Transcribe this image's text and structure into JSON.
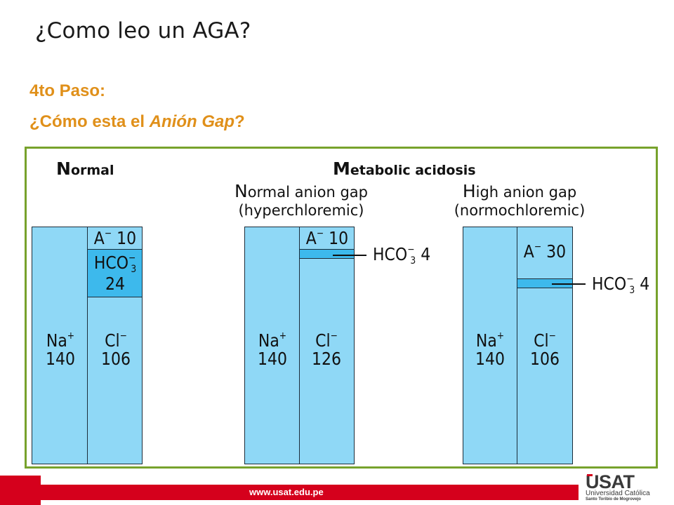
{
  "slide": {
    "title": "¿Como leo un AGA?",
    "step": "4to Paso:",
    "question_prefix": "¿Cómo esta el ",
    "question_em": "Anión Gap",
    "question_suffix": "?"
  },
  "figure": {
    "normal_heading_cap": "N",
    "normal_heading_rest": "ormal",
    "metabolic_heading_cap": "M",
    "metabolic_heading_rest": "etabolic acidosis",
    "panel2_line1_cap": "N",
    "panel2_line1_rest": "ormal anion gap",
    "panel2_line2": "(hyperchloremic)",
    "panel3_line1_cap": "H",
    "panel3_line1_rest": "igh anion gap",
    "panel3_line2": "(normochloremic)",
    "normal": {
      "na_name": "Na",
      "na_charge": "+",
      "na_value": "140",
      "cl_name": "Cl",
      "cl_charge": "−",
      "cl_value": "106",
      "a_name": "A",
      "a_charge": "−",
      "a_value": "10",
      "hco3_name": "HCO",
      "hco3_sub": "3",
      "hco3_charge": "−",
      "hco3_value": "24"
    },
    "hyperchloremic": {
      "na_name": "Na",
      "na_charge": "+",
      "na_value": "140",
      "cl_name": "Cl",
      "cl_charge": "−",
      "cl_value": "126",
      "a_name": "A",
      "a_charge": "−",
      "a_value": "10",
      "hco3_callout_name": "HCO",
      "hco3_callout_sub": "3",
      "hco3_callout_charge": "−",
      "hco3_callout_value": "4"
    },
    "normochloremic": {
      "na_name": "Na",
      "na_charge": "+",
      "na_value": "140",
      "cl_name": "Cl",
      "cl_charge": "−",
      "cl_value": "106",
      "a_name": "A",
      "a_charge": "−",
      "a_value": "30",
      "hco3_callout_name": "HCO",
      "hco3_callout_sub": "3",
      "hco3_callout_charge": "−",
      "hco3_callout_value": "4"
    }
  },
  "footer": {
    "url": "www.usat.edu.pe",
    "logo_main": "USAT",
    "logo_line1": "Universidad Católica",
    "logo_line2": "Santo Toribio de Mogrovejo"
  },
  "colors": {
    "accent_orange": "#e0901a",
    "frame_green": "#77a22c",
    "column_blue": "#8fd8f6",
    "hco3_blue": "#3db9ec",
    "brand_red": "#d5001c"
  }
}
